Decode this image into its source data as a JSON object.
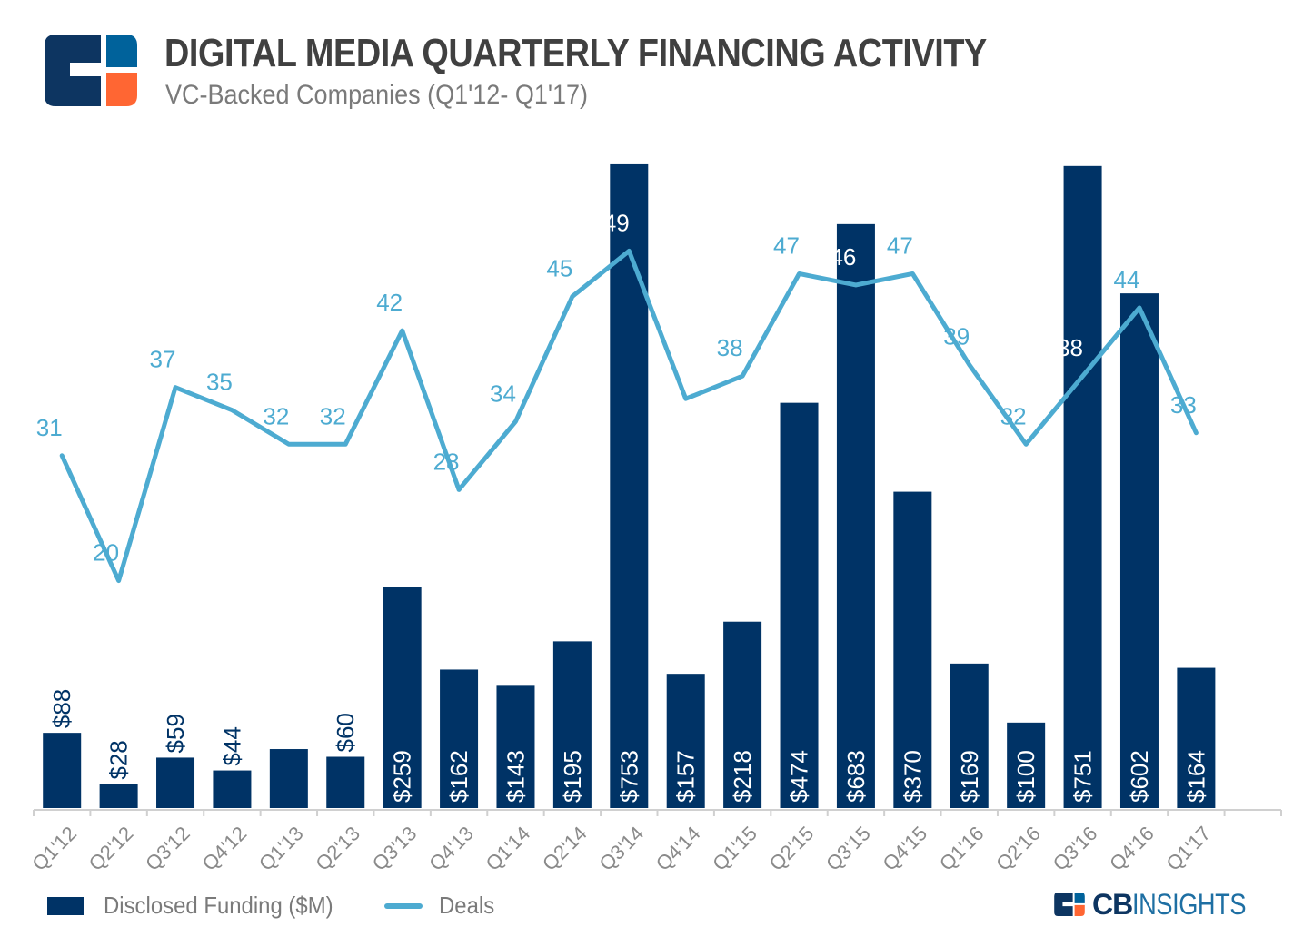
{
  "header": {
    "title": "DIGITAL MEDIA QUARTERLY FINANCING ACTIVITY",
    "subtitle": "VC-Backed Companies (Q1'12- Q1'17)",
    "logo_icon": "cb-insights-logo-icon"
  },
  "colors": {
    "bar": "#003366",
    "line": "#4dabd1",
    "title": "#404040",
    "subtitle": "#7a7a7a",
    "axis": "#d0d0d0",
    "logo_dark": "#0d3561",
    "logo_blue": "#00629b",
    "logo_orange": "#ff6633"
  },
  "legend": {
    "items": [
      {
        "label": "Disclosed Funding ($M)",
        "type": "bar"
      },
      {
        "label": "Deals",
        "type": "line"
      }
    ]
  },
  "brand": {
    "cb": "CB",
    "insights": "INSIGHTS"
  },
  "chart_data": {
    "type": "bar+line",
    "title": "DIGITAL MEDIA QUARTERLY FINANCING ACTIVITY",
    "subtitle": "VC-Backed Companies (Q1'12- Q1'17)",
    "xlabel": "",
    "ylabel": "",
    "categories": [
      "Q1'12",
      "Q2'12",
      "Q3'12",
      "Q4'12",
      "Q1'13",
      "Q2'13",
      "Q3'13",
      "Q4'13",
      "Q1'14",
      "Q2'14",
      "Q3'14",
      "Q4'14",
      "Q1'15",
      "Q2'15",
      "Q3'15",
      "Q4'15",
      "Q1'16",
      "Q2'16",
      "Q3'16",
      "Q4'16",
      "Q1'17"
    ],
    "series": [
      {
        "name": "Disclosed Funding ($M)",
        "type": "bar",
        "axis": "left",
        "values": [
          88,
          28,
          59,
          44,
          69,
          60,
          259,
          162,
          143,
          195,
          753,
          157,
          218,
          474,
          683,
          370,
          169,
          100,
          751,
          602,
          164
        ],
        "labels": [
          "$88",
          "$28",
          "$59",
          "$44",
          "",
          "$60",
          "$259",
          "$162",
          "$143",
          "$195",
          "$753",
          "$157",
          "$218",
          "$474",
          "$683",
          "$370",
          "$169",
          "$100",
          "$751",
          "$602",
          "$164"
        ]
      },
      {
        "name": "Deals",
        "type": "line",
        "axis": "right",
        "values": [
          31,
          20,
          37,
          35,
          32,
          32,
          42,
          28,
          34,
          45,
          49,
          36,
          38,
          47,
          46,
          47,
          39,
          32,
          38,
          44,
          33
        ],
        "labels": [
          "31",
          "20",
          "37",
          "35",
          "32",
          "32",
          "42",
          "28",
          "34",
          "45",
          "49",
          "",
          "38",
          "47",
          "46",
          "47",
          "39",
          "32",
          "38",
          "44",
          "33"
        ]
      }
    ],
    "ylim_left": [
      0,
      754
    ],
    "ylim_right": [
      0,
      56.7
    ],
    "grid": false,
    "y_axis_visible": false,
    "legend_position": "bottom-left"
  }
}
